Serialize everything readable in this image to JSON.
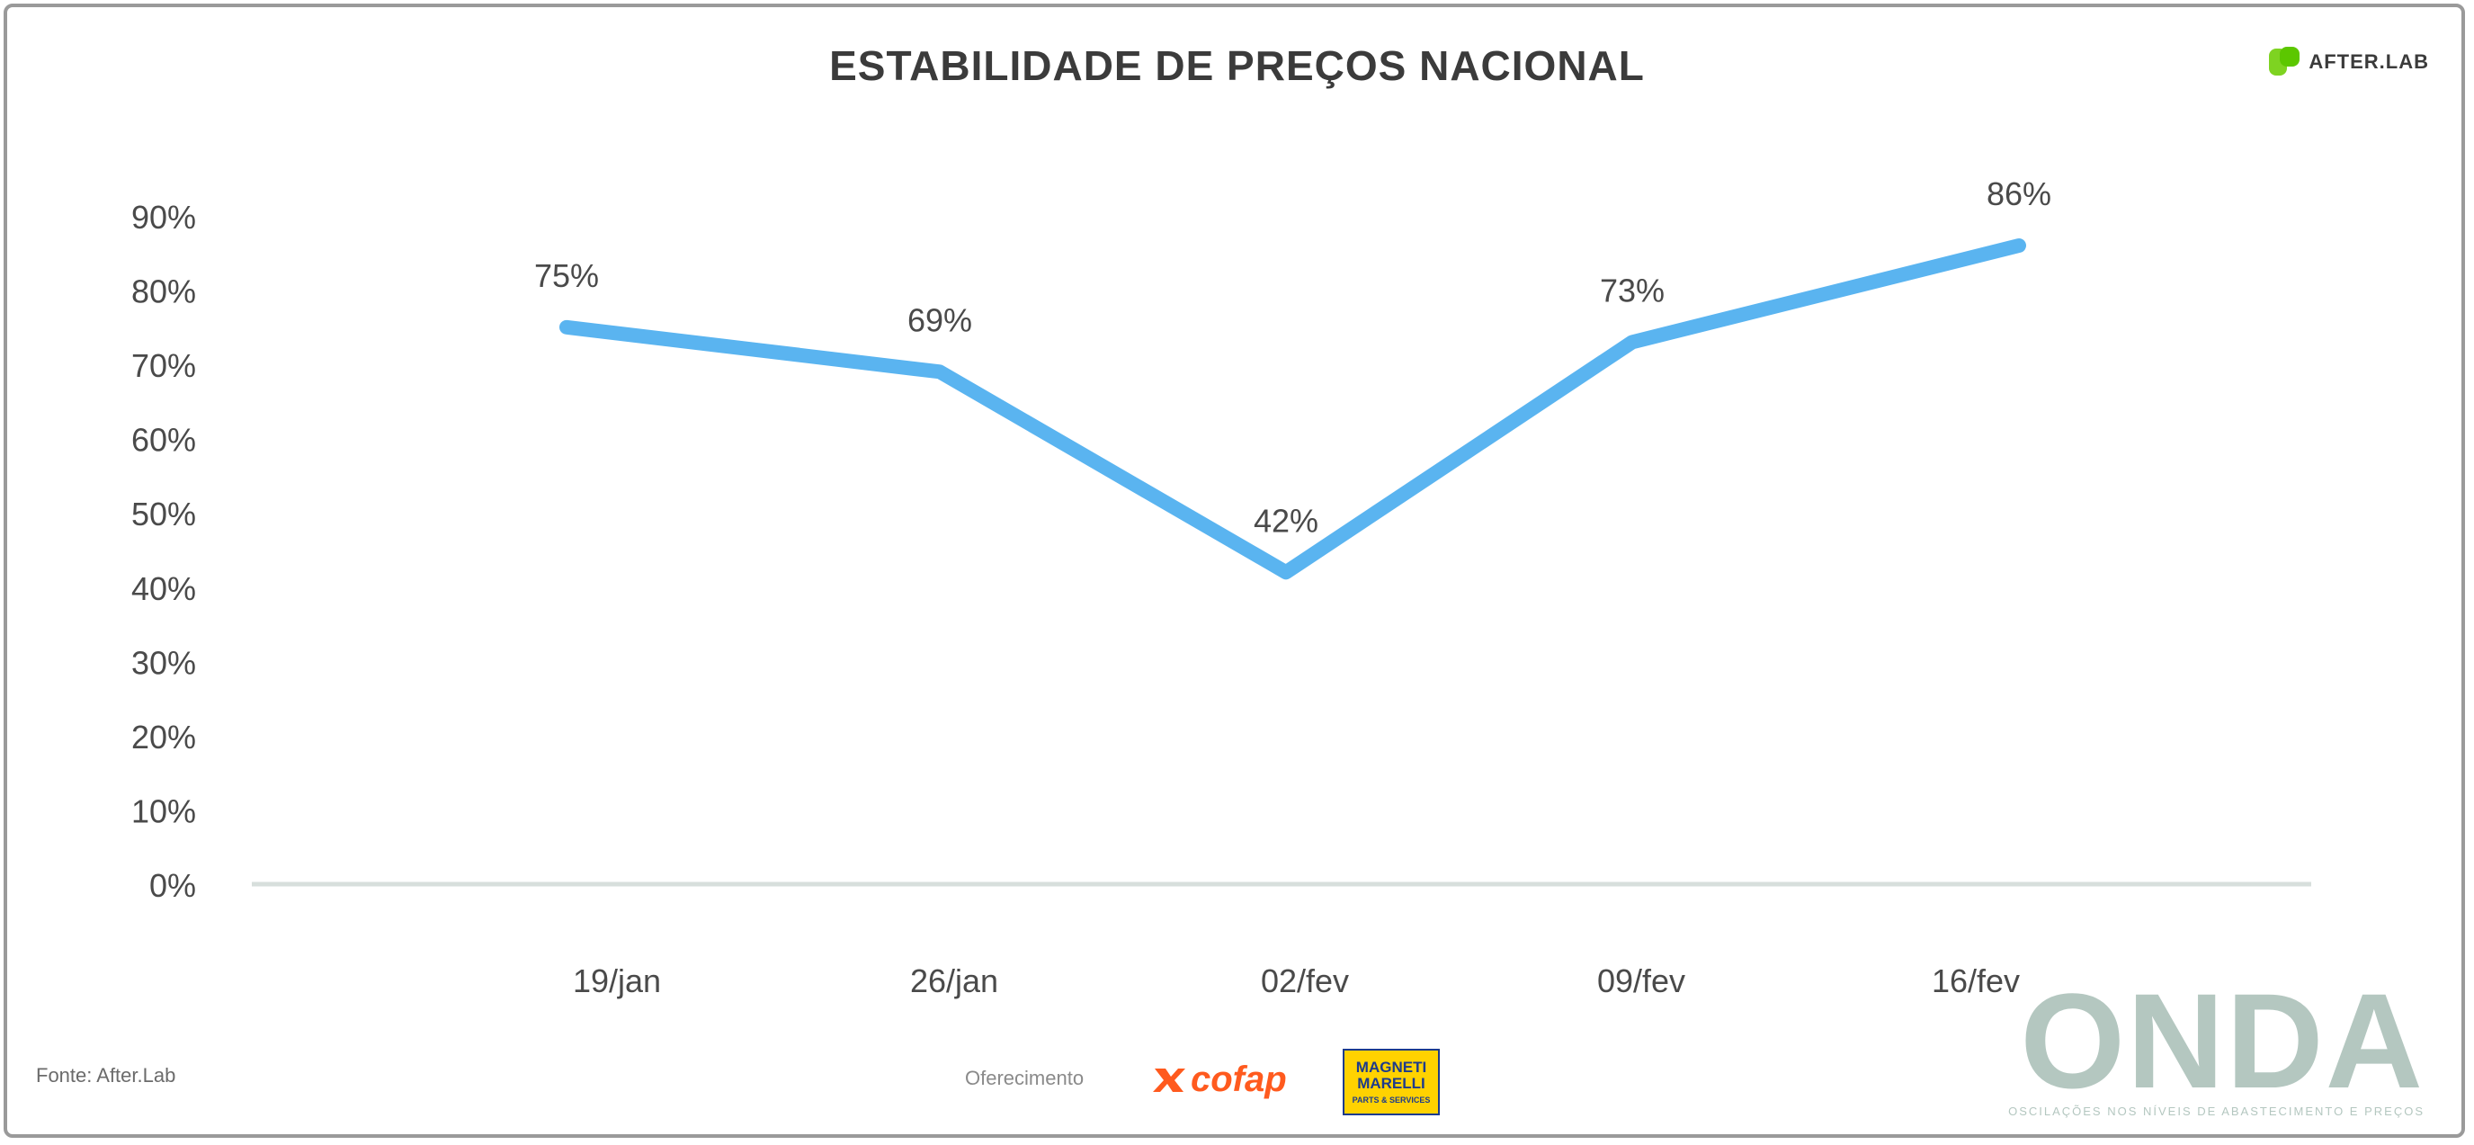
{
  "header": {
    "title": "ESTABILIDADE DE PREÇOS NACIONAL",
    "brand_name": "AFTER.LAB",
    "brand_color": "#7ed321"
  },
  "chart_data": {
    "type": "line",
    "title": "ESTABILIDADE DE PREÇOS NACIONAL",
    "categories": [
      "19/jan",
      "26/jan",
      "02/fev",
      "09/fev",
      "16/fev"
    ],
    "series": [
      {
        "values": [
          75,
          69,
          42,
          73,
          86
        ],
        "color": "#5ab4f0"
      }
    ],
    "data_labels": [
      "75%",
      "69%",
      "42%",
      "73%",
      "86%"
    ],
    "y_ticks": [
      "0%",
      "10%",
      "20%",
      "30%",
      "40%",
      "50%",
      "60%",
      "70%",
      "80%",
      "90%"
    ],
    "ylim": [
      0,
      90
    ],
    "grid": false,
    "legend": "none"
  },
  "footer": {
    "source": "Fonte: After.Lab",
    "sponsor_label": "Oferecimento",
    "sponsor_1": "cofap",
    "sponsor_1_color": "#ff5a1e",
    "sponsor_2_name": "MAGNETI MARELLI",
    "sponsor_2_sub": "PARTS & SERVICES",
    "logo": "ONDA",
    "logo_tagline": "OSCILAÇÕES NOS NÍVEIS DE ABASTECIMENTO E PREÇOS"
  }
}
